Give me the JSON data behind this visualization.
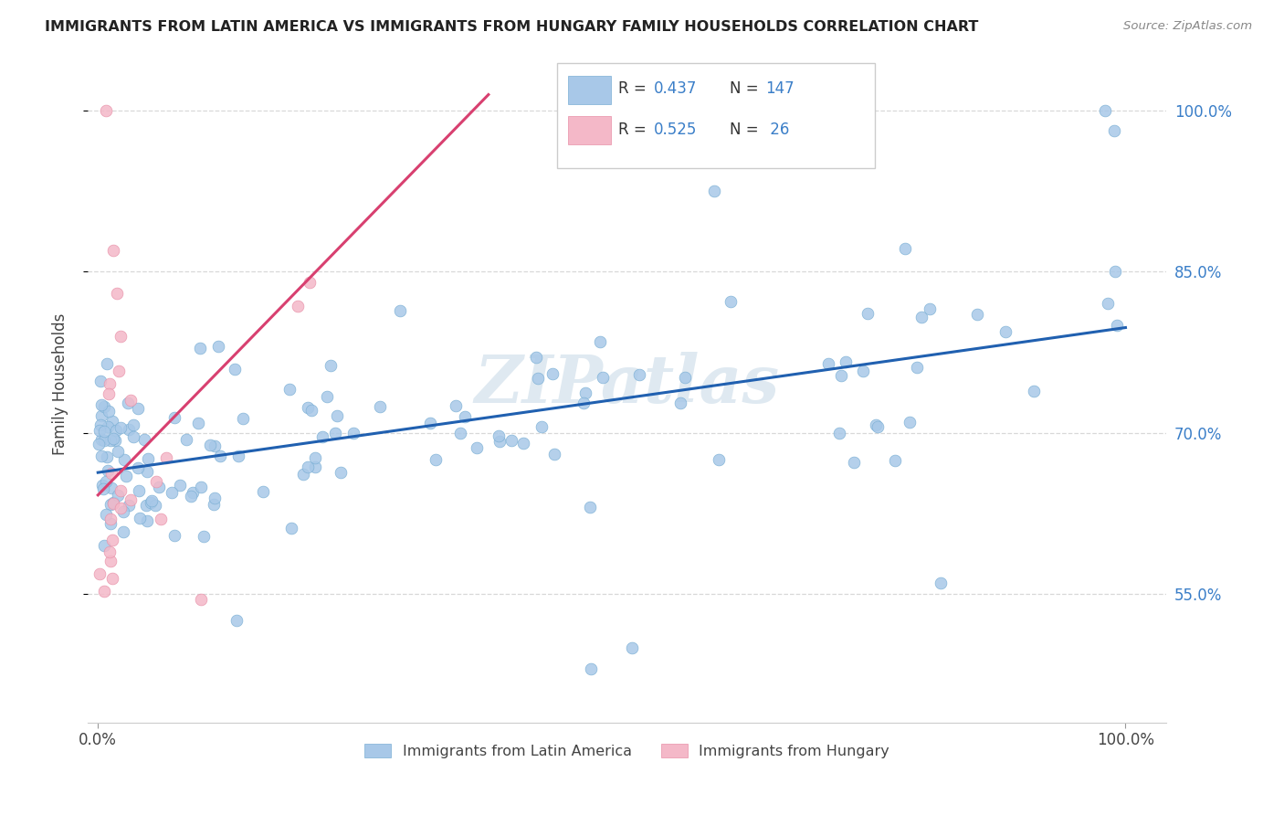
{
  "title": "IMMIGRANTS FROM LATIN AMERICA VS IMMIGRANTS FROM HUNGARY FAMILY HOUSEHOLDS CORRELATION CHART",
  "source": "Source: ZipAtlas.com",
  "ylabel": "Family Households",
  "blue_R": "0.437",
  "blue_N": "147",
  "pink_R": "0.525",
  "pink_N": "26",
  "blue_color": "#a8c8e8",
  "pink_color": "#f4b8c8",
  "blue_edge_color": "#7aafd4",
  "pink_edge_color": "#e890a8",
  "blue_line_color": "#2060b0",
  "pink_line_color": "#d84070",
  "legend_label_blue": "Immigrants from Latin America",
  "legend_label_pink": "Immigrants from Hungary",
  "watermark": "ZIPatlas",
  "blue_trend_x": [
    0.0,
    1.0
  ],
  "blue_trend_y": [
    0.663,
    0.798
  ],
  "pink_trend_x": [
    0.0,
    0.38
  ],
  "pink_trend_y": [
    0.642,
    1.015
  ],
  "xlim": [
    -0.01,
    1.04
  ],
  "ylim": [
    0.43,
    1.06
  ],
  "yticks": [
    0.55,
    0.7,
    0.85,
    1.0
  ],
  "ytick_labels": [
    "55.0%",
    "70.0%",
    "85.0%",
    "100.0%"
  ],
  "xtick_labels": [
    "0.0%",
    "100.0%"
  ],
  "xtick_pos": [
    0.0,
    1.0
  ]
}
